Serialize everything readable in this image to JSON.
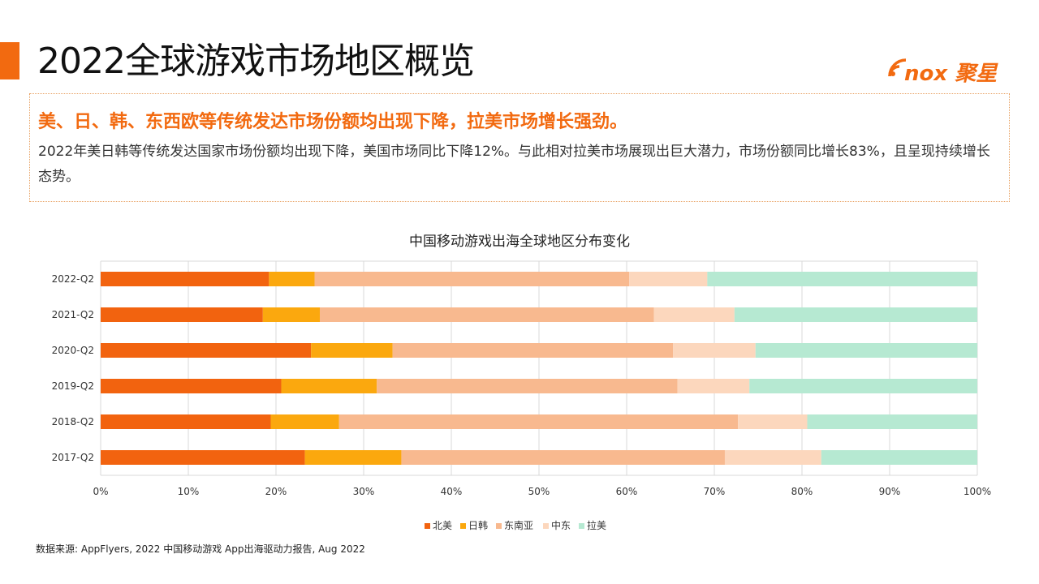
{
  "page": {
    "title": "2022全球游戏市场地区概览",
    "logo_text": "nox 聚星",
    "headline": "美、日、韩、东西欧等传统发达市场份额均出现下降，拉美市场增长强劲。",
    "description": "2022年美日韩等传统发达国家市场份额均出现下降，美国市场同比下降12%。与此相对拉美市场展现出巨大潜力，市场份额同比增长83%，且呈现持续增长态势。",
    "source": "数据来源: AppFlyers, 2022 中国移动游戏 App出海驱动力报告, Aug 2022",
    "accent_color": "#f26a10"
  },
  "chart_data": {
    "type": "bar",
    "orientation": "horizontal",
    "stacked": "percent",
    "title": "中国移动游戏出海全球地区分布变化",
    "categories": [
      "2022-Q2",
      "2021-Q2",
      "2020-Q2",
      "2019-Q2",
      "2018-Q2",
      "2017-Q2"
    ],
    "series": [
      {
        "name": "北美",
        "color": "#f2630f",
        "values": [
          19.2,
          18.5,
          24.0,
          20.6,
          19.4,
          23.3
        ]
      },
      {
        "name": "日韩",
        "color": "#fba80e",
        "values": [
          5.2,
          6.5,
          9.3,
          10.9,
          7.8,
          11.0
        ]
      },
      {
        "name": "东南亚",
        "color": "#f8b98f",
        "values": [
          35.9,
          38.1,
          32.0,
          34.3,
          45.5,
          36.9
        ]
      },
      {
        "name": "中东",
        "color": "#fcd7bd",
        "values": [
          8.9,
          9.2,
          9.4,
          8.2,
          7.9,
          11.0
        ]
      },
      {
        "name": "拉美",
        "color": "#b6e9d2",
        "values": [
          30.8,
          27.7,
          25.3,
          26.0,
          19.4,
          17.8
        ]
      }
    ],
    "x_ticks": [
      "0%",
      "10%",
      "20%",
      "30%",
      "40%",
      "50%",
      "60%",
      "70%",
      "80%",
      "90%",
      "100%"
    ],
    "xlim": [
      0,
      100
    ],
    "grid": true,
    "legend_position": "bottom"
  }
}
